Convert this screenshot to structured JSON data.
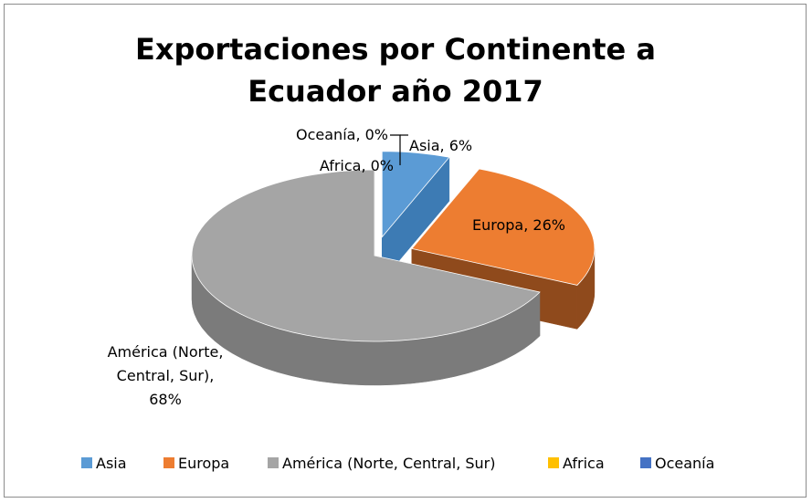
{
  "chart_data": {
    "type": "pie",
    "title_lines": [
      "Exportaciones por Continente a",
      "Ecuador año 2017"
    ],
    "series": [
      {
        "name": "Asia",
        "value": 6,
        "label": "Asia, 6%",
        "color": "#5b9bd5",
        "side": "#3d7bb4"
      },
      {
        "name": "Europa",
        "value": 26,
        "label": "Europa, 26%",
        "color": "#ed7d31",
        "side": "#8f4a1c"
      },
      {
        "name": "América (Norte,  Central, Sur)",
        "value": 68,
        "label_lines": [
          "América (Norte,",
          "Central, Sur),",
          "68%"
        ],
        "color": "#a5a5a5",
        "side": "#7b7b7b"
      },
      {
        "name": "Africa",
        "value": 0,
        "label": "Africa, 0%",
        "color": "#ffc000",
        "side": "#bf9000"
      },
      {
        "name": "Oceanía",
        "value": 0,
        "label": "Oceanía, 0%",
        "color": "#4472c4",
        "side": "#2f5597"
      }
    ],
    "legend_position": "bottom"
  }
}
